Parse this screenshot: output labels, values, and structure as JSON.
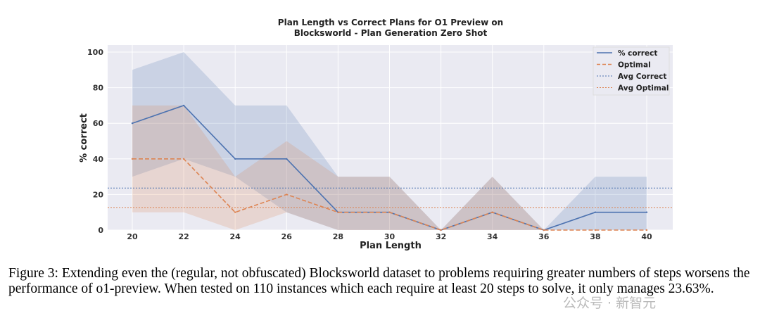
{
  "chart_data": {
    "type": "line",
    "title": [
      "Plan Length vs Correct Plans for O1 Preview on",
      "Blocksworld - Plan Generation Zero Shot"
    ],
    "xlabel": "Plan Length",
    "ylabel": "% correct",
    "x": [
      20,
      22,
      24,
      26,
      28,
      30,
      32,
      34,
      36,
      38,
      40
    ],
    "xlim": [
      19,
      41
    ],
    "ylim": [
      0,
      100
    ],
    "yticks": [
      0,
      20,
      40,
      60,
      80,
      100
    ],
    "grid": true,
    "legend_placement": "top-right",
    "series": [
      {
        "name": "% correct",
        "color": "#4c72b0",
        "style": "solid",
        "values": [
          60,
          70,
          40,
          40,
          10,
          10,
          0,
          10,
          0,
          10,
          10
        ],
        "band_low": [
          30,
          40,
          30,
          10,
          0,
          0,
          0,
          0,
          0,
          0,
          0
        ],
        "band_high": [
          90,
          100,
          70,
          70,
          30,
          30,
          0,
          30,
          0,
          30,
          30
        ]
      },
      {
        "name": "Optimal",
        "color": "#dd8452",
        "style": "dashed",
        "values": [
          40,
          40,
          10,
          20,
          10,
          10,
          0,
          10,
          0,
          0,
          0
        ],
        "band_low": [
          10,
          10,
          0,
          10,
          0,
          0,
          0,
          0,
          0,
          0,
          0
        ],
        "band_high": [
          70,
          70,
          30,
          50,
          30,
          30,
          0,
          30,
          0,
          0,
          0
        ]
      }
    ],
    "hlines": [
      {
        "name": "Avg Correct",
        "value": 23.63,
        "color": "#4c72b0"
      },
      {
        "name": "Avg Optimal",
        "value": 12.7,
        "color": "#dd8452"
      }
    ]
  },
  "caption": "Figure 3: Extending even the (regular, not obfuscated) Blocksworld dataset to problems requiring greater numbers of steps worsens the performance of o1-preview. When tested on 110 instances which each require at least 20 steps to solve, it only manages 23.63%.",
  "watermark": "公众号 · 新智元"
}
